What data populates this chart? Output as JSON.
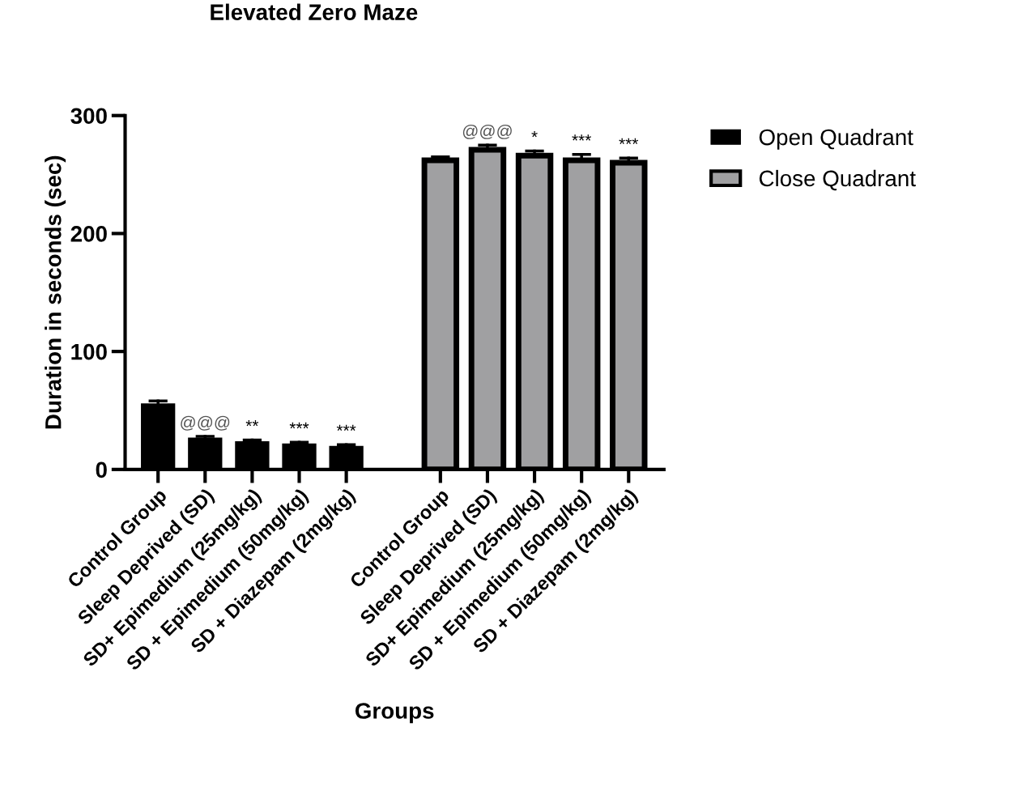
{
  "chart_data": {
    "type": "bar",
    "title": "Elevated Zero Maze",
    "xlabel": "Groups",
    "ylabel": "Duration in seconds (sec)",
    "categories": [
      "Control Group",
      "Sleep Deprived (SD)",
      "SD+ Epimedium (25mg/kg)",
      "SD + Epimedium (50mg/kg)",
      "SD + Diazepam (2mg/kg)",
      "Control Group",
      "Sleep Deprived (SD)",
      "SD+ Epimedium (25mg/kg)",
      "SD + Epimedium (50mg/kg)",
      "SD + Diazepam (2mg/kg)"
    ],
    "series": [
      {
        "name": "Open Quadrant",
        "color": "#000000",
        "values": [
          55,
          26,
          23,
          21,
          19,
          null,
          null,
          null,
          null,
          null
        ],
        "errors": [
          [
            55,
            58
          ],
          [
            26,
            28
          ],
          [
            23,
            25
          ],
          [
            21,
            23
          ],
          [
            19,
            21
          ],
          null,
          null,
          null,
          null,
          null
        ],
        "value_labels": [
          null,
          "@@@",
          "**",
          "***",
          "***",
          null,
          null,
          null,
          null,
          null
        ]
      },
      {
        "name": "Close Quadrant",
        "color": "#a0a0a2",
        "values": [
          null,
          null,
          null,
          null,
          null,
          262,
          271,
          266,
          262,
          260
        ],
        "errors": [
          null,
          null,
          null,
          null,
          null,
          [
            262,
            265
          ],
          [
            271,
            275
          ],
          [
            266,
            270
          ],
          [
            262,
            267
          ],
          [
            260,
            264
          ]
        ],
        "value_labels": [
          null,
          null,
          null,
          null,
          null,
          null,
          "@@@",
          "*",
          "***",
          "***"
        ]
      }
    ],
    "ylim": [
      0,
      300
    ],
    "yticks": [
      0,
      100,
      200,
      300
    ],
    "grid": false,
    "legend": "top right"
  }
}
